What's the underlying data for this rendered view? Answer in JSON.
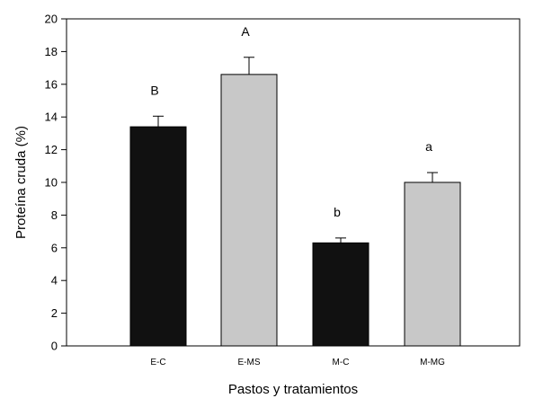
{
  "chart_data": {
    "type": "bar",
    "title": "",
    "xlabel": "Pastos y tratamientos",
    "ylabel": "Proteína cruda (%)",
    "ylim": [
      0,
      20
    ],
    "yticks": [
      0,
      2,
      4,
      6,
      8,
      10,
      12,
      14,
      16,
      18,
      20
    ],
    "grid": false,
    "categories": [
      "E-C",
      "E-MS",
      "M-C",
      "M-MG"
    ],
    "values": [
      13.4,
      16.6,
      6.3,
      10.0
    ],
    "errors": [
      0.65,
      1.05,
      0.3,
      0.6
    ],
    "letters": [
      "B",
      "A",
      "b",
      "a"
    ],
    "colors": [
      "#111111",
      "#c8c8c8",
      "#111111",
      "#c8c8c8"
    ]
  }
}
